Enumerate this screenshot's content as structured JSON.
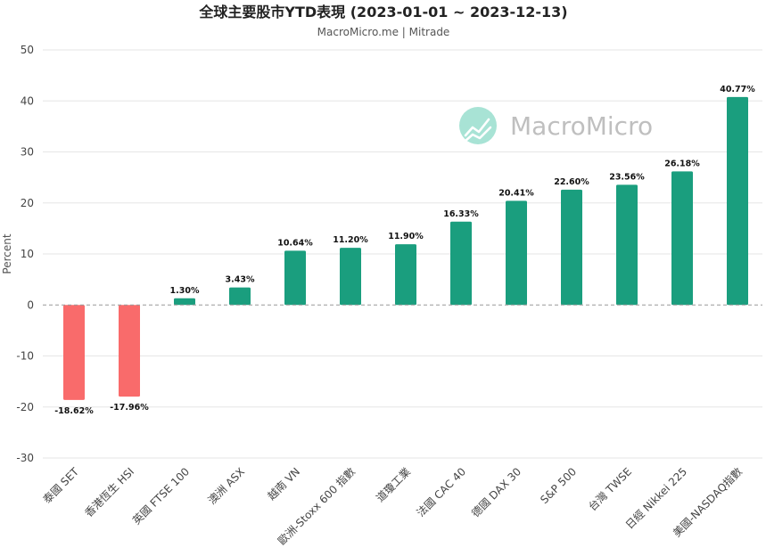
{
  "colors": {
    "positive": "#1a9e7e",
    "negative": "#f96b6b",
    "grid": "#e6e6e6",
    "zero_line": "#999999",
    "watermark_icon": "#a8e3d5",
    "watermark_text": "#c4c4c4"
  },
  "watermark": {
    "icon": "chart-trend-icon",
    "text": "MacroMicro"
  },
  "chart_data": {
    "type": "bar",
    "title": "全球主要股市YTD表現 (2023-01-01 ~ 2023-12-13)",
    "subtitle": "MacroMicro.me | Mitrade",
    "ylabel": "Percent",
    "xlabel": "",
    "ylim": [
      -30,
      50
    ],
    "yticks": [
      50,
      40,
      30,
      20,
      10,
      0,
      -10,
      -20,
      -30
    ],
    "grid": true,
    "legend": "none",
    "categories": [
      "泰國 SET",
      "香港恆生 HSI",
      "英國 FTSE 100",
      "澳洲 ASX",
      "越南 VN",
      "歐洲-Stoxx 600 指數",
      "道瓊工業",
      "法國 CAC 40",
      "德國 DAX 30",
      "S&P 500",
      "台灣 TWSE",
      "日經 Nikkei 225",
      "美國-NASDAQ指數"
    ],
    "values": [
      -18.62,
      -17.96,
      1.3,
      3.43,
      10.64,
      11.2,
      11.9,
      16.33,
      20.41,
      22.6,
      23.56,
      26.18,
      40.77
    ],
    "data_labels": [
      "-18.62%",
      "-17.96%",
      "1.30%",
      "3.43%",
      "10.64%",
      "11.20%",
      "11.90%",
      "16.33%",
      "20.41%",
      "22.60%",
      "23.56%",
      "26.18%",
      "40.77%"
    ]
  }
}
